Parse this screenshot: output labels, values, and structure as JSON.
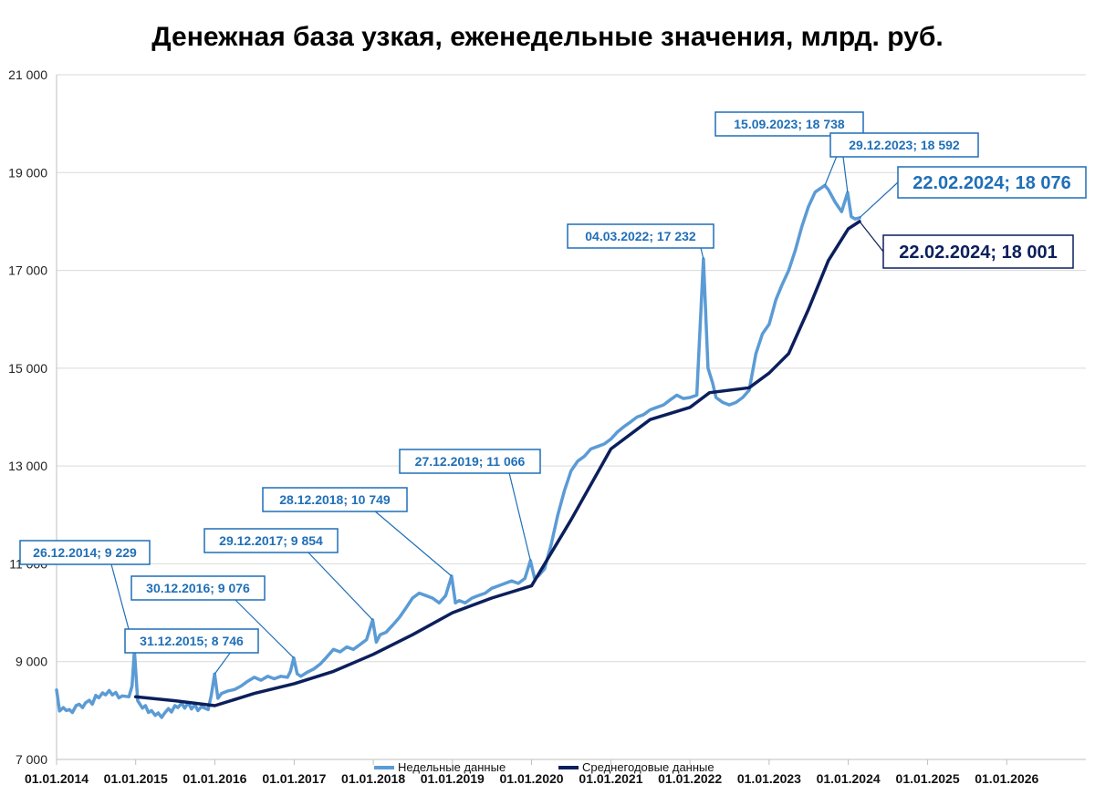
{
  "chart_data": {
    "type": "line",
    "title": "Денежная база узкая, еженедельные значения, млрд. руб.",
    "xlabel": "",
    "ylabel": "",
    "ylim": [
      7000,
      21000
    ],
    "y_ticks": [
      "7 000",
      "9 000",
      "11 000",
      "13 000",
      "15 000",
      "17 000",
      "19 000",
      "21 000"
    ],
    "y_tick_values": [
      7000,
      9000,
      11000,
      13000,
      15000,
      17000,
      19000,
      21000
    ],
    "x_range": [
      "01.01.2014",
      "01.01.2027"
    ],
    "x_ticks": [
      "01.01.2014",
      "01.01.2015",
      "01.01.2016",
      "01.01.2017",
      "01.01.2018",
      "01.01.2019",
      "01.01.2020",
      "01.01.2021",
      "01.01.2022",
      "01.01.2023",
      "01.01.2024",
      "01.01.2025",
      "01.01.2026"
    ],
    "grid": "horizontal",
    "legend": "bottom",
    "series": [
      {
        "name": "Недельные данные",
        "color": "#5B9BD5",
        "points": [
          [
            "01.01.2014",
            8420
          ],
          [
            "15.01.2014",
            7990
          ],
          [
            "01.02.2014",
            8060
          ],
          [
            "15.02.2014",
            8000
          ],
          [
            "01.03.2014",
            8020
          ],
          [
            "15.03.2014",
            7960
          ],
          [
            "01.04.2014",
            8100
          ],
          [
            "15.04.2014",
            8130
          ],
          [
            "01.05.2014",
            8060
          ],
          [
            "15.05.2014",
            8160
          ],
          [
            "01.06.2014",
            8210
          ],
          [
            "15.06.2014",
            8130
          ],
          [
            "01.07.2014",
            8310
          ],
          [
            "15.07.2014",
            8260
          ],
          [
            "01.08.2014",
            8360
          ],
          [
            "15.08.2014",
            8320
          ],
          [
            "01.09.2014",
            8410
          ],
          [
            "15.09.2014",
            8320
          ],
          [
            "01.10.2014",
            8370
          ],
          [
            "15.10.2014",
            8260
          ],
          [
            "01.11.2014",
            8300
          ],
          [
            "01.12.2014",
            8280
          ],
          [
            "15.12.2014",
            8500
          ],
          [
            "26.12.2014",
            9229
          ],
          [
            "10.01.2015",
            8200
          ],
          [
            "01.02.2015",
            8050
          ],
          [
            "15.02.2015",
            8100
          ],
          [
            "01.03.2015",
            7960
          ],
          [
            "15.03.2015",
            8000
          ],
          [
            "01.04.2015",
            7900
          ],
          [
            "15.04.2015",
            7950
          ],
          [
            "01.05.2015",
            7860
          ],
          [
            "15.05.2015",
            7950
          ],
          [
            "01.06.2015",
            8040
          ],
          [
            "15.06.2015",
            7970
          ],
          [
            "01.07.2015",
            8100
          ],
          [
            "15.07.2015",
            8060
          ],
          [
            "01.08.2015",
            8150
          ],
          [
            "15.08.2015",
            8050
          ],
          [
            "01.09.2015",
            8160
          ],
          [
            "15.09.2015",
            8030
          ],
          [
            "01.10.2015",
            8120
          ],
          [
            "15.10.2015",
            8000
          ],
          [
            "01.11.2015",
            8080
          ],
          [
            "01.12.2015",
            8020
          ],
          [
            "15.12.2015",
            8300
          ],
          [
            "31.12.2015",
            8746
          ],
          [
            "15.01.2016",
            8250
          ],
          [
            "01.02.2016",
            8350
          ],
          [
            "01.03.2016",
            8400
          ],
          [
            "01.04.2016",
            8430
          ],
          [
            "01.05.2016",
            8500
          ],
          [
            "01.06.2016",
            8600
          ],
          [
            "01.07.2016",
            8680
          ],
          [
            "01.08.2016",
            8620
          ],
          [
            "01.09.2016",
            8700
          ],
          [
            "01.10.2016",
            8650
          ],
          [
            "01.11.2016",
            8700
          ],
          [
            "01.12.2016",
            8680
          ],
          [
            "15.12.2016",
            8800
          ],
          [
            "30.12.2016",
            9076
          ],
          [
            "15.01.2017",
            8750
          ],
          [
            "01.02.2017",
            8700
          ],
          [
            "01.03.2017",
            8780
          ],
          [
            "01.04.2017",
            8850
          ],
          [
            "01.05.2017",
            8950
          ],
          [
            "01.06.2017",
            9100
          ],
          [
            "01.07.2017",
            9250
          ],
          [
            "01.08.2017",
            9200
          ],
          [
            "01.09.2017",
            9300
          ],
          [
            "01.10.2017",
            9250
          ],
          [
            "01.11.2017",
            9350
          ],
          [
            "01.12.2017",
            9450
          ],
          [
            "29.12.2017",
            9854
          ],
          [
            "15.01.2018",
            9400
          ],
          [
            "01.02.2018",
            9550
          ],
          [
            "01.03.2018",
            9600
          ],
          [
            "01.04.2018",
            9750
          ],
          [
            "01.05.2018",
            9900
          ],
          [
            "01.06.2018",
            10100
          ],
          [
            "01.07.2018",
            10300
          ],
          [
            "01.08.2018",
            10400
          ],
          [
            "01.09.2018",
            10350
          ],
          [
            "01.10.2018",
            10300
          ],
          [
            "01.11.2018",
            10200
          ],
          [
            "01.12.2018",
            10350
          ],
          [
            "28.12.2018",
            10749
          ],
          [
            "15.01.2019",
            10200
          ],
          [
            "01.02.2019",
            10250
          ],
          [
            "01.03.2019",
            10200
          ],
          [
            "01.04.2019",
            10300
          ],
          [
            "01.05.2019",
            10350
          ],
          [
            "01.06.2019",
            10400
          ],
          [
            "01.07.2019",
            10500
          ],
          [
            "01.08.2019",
            10550
          ],
          [
            "01.09.2019",
            10600
          ],
          [
            "01.10.2019",
            10650
          ],
          [
            "01.11.2019",
            10600
          ],
          [
            "01.12.2019",
            10700
          ],
          [
            "27.12.2019",
            11066
          ],
          [
            "15.01.2020",
            10700
          ],
          [
            "01.02.2020",
            10750
          ],
          [
            "01.03.2020",
            10900
          ],
          [
            "01.04.2020",
            11400
          ],
          [
            "01.05.2020",
            12000
          ],
          [
            "01.06.2020",
            12500
          ],
          [
            "01.07.2020",
            12900
          ],
          [
            "01.08.2020",
            13100
          ],
          [
            "01.09.2020",
            13200
          ],
          [
            "01.10.2020",
            13350
          ],
          [
            "01.11.2020",
            13400
          ],
          [
            "01.12.2020",
            13450
          ],
          [
            "01.01.2021",
            13550
          ],
          [
            "01.02.2021",
            13700
          ],
          [
            "01.03.2021",
            13800
          ],
          [
            "01.04.2021",
            13900
          ],
          [
            "01.05.2021",
            14000
          ],
          [
            "01.06.2021",
            14050
          ],
          [
            "01.07.2021",
            14150
          ],
          [
            "01.08.2021",
            14200
          ],
          [
            "01.09.2021",
            14250
          ],
          [
            "01.10.2021",
            14350
          ],
          [
            "01.11.2021",
            14450
          ],
          [
            "01.12.2021",
            14380
          ],
          [
            "01.01.2022",
            14400
          ],
          [
            "01.02.2022",
            14450
          ],
          [
            "04.03.2022",
            17232
          ],
          [
            "25.03.2022",
            15000
          ],
          [
            "15.04.2022",
            14700
          ],
          [
            "01.05.2022",
            14400
          ],
          [
            "01.06.2022",
            14300
          ],
          [
            "01.07.2022",
            14250
          ],
          [
            "01.08.2022",
            14300
          ],
          [
            "01.09.2022",
            14400
          ],
          [
            "01.10.2022",
            14550
          ],
          [
            "01.11.2022",
            15300
          ],
          [
            "01.12.2022",
            15700
          ],
          [
            "01.01.2023",
            15900
          ],
          [
            "01.02.2023",
            16400
          ],
          [
            "01.03.2023",
            16700
          ],
          [
            "01.04.2023",
            17000
          ],
          [
            "01.05.2023",
            17400
          ],
          [
            "01.06.2023",
            17900
          ],
          [
            "01.07.2023",
            18300
          ],
          [
            "01.08.2023",
            18600
          ],
          [
            "15.09.2023",
            18738
          ],
          [
            "01.10.2023",
            18650
          ],
          [
            "01.11.2023",
            18400
          ],
          [
            "01.12.2023",
            18200
          ],
          [
            "29.12.2023",
            18592
          ],
          [
            "15.01.2024",
            18100
          ],
          [
            "01.02.2024",
            18050
          ],
          [
            "22.02.2024",
            18076
          ]
        ]
      },
      {
        "name": "Среднегодовые данные",
        "color": "#0B1F5C",
        "points": [
          [
            "01.01.2015",
            8280
          ],
          [
            "01.07.2015",
            8200
          ],
          [
            "01.01.2016",
            8100
          ],
          [
            "01.07.2016",
            8350
          ],
          [
            "01.01.2017",
            8550
          ],
          [
            "01.07.2017",
            8800
          ],
          [
            "01.01.2018",
            9150
          ],
          [
            "01.07.2018",
            9550
          ],
          [
            "01.01.2019",
            10000
          ],
          [
            "01.07.2019",
            10300
          ],
          [
            "01.01.2020",
            10550
          ],
          [
            "01.07.2020",
            11900
          ],
          [
            "01.01.2021",
            13350
          ],
          [
            "01.07.2021",
            13950
          ],
          [
            "01.01.2022",
            14200
          ],
          [
            "01.04.2022",
            14500
          ],
          [
            "01.10.2022",
            14600
          ],
          [
            "01.01.2023",
            14900
          ],
          [
            "01.04.2023",
            15300
          ],
          [
            "01.07.2023",
            16200
          ],
          [
            "01.10.2023",
            17200
          ],
          [
            "01.01.2024",
            17850
          ],
          [
            "22.02.2024",
            18001
          ]
        ]
      }
    ],
    "annotations": [
      {
        "label": "26.12.2014; 9 229",
        "series": 0,
        "date": "26.12.2014",
        "value": 9229
      },
      {
        "label": "31.12.2015; 8 746",
        "series": 0,
        "date": "31.12.2015",
        "value": 8746
      },
      {
        "label": "30.12.2016; 9 076",
        "series": 0,
        "date": "30.12.2016",
        "value": 9076
      },
      {
        "label": "29.12.2017; 9 854",
        "series": 0,
        "date": "29.12.2017",
        "value": 9854
      },
      {
        "label": "28.12.2018; 10 749",
        "series": 0,
        "date": "28.12.2018",
        "value": 10749
      },
      {
        "label": "27.12.2019; 11 066",
        "series": 0,
        "date": "27.12.2019",
        "value": 11066
      },
      {
        "label": "04.03.2022; 17 232",
        "series": 0,
        "date": "04.03.2022",
        "value": 17232
      },
      {
        "label": "15.09.2023; 18 738",
        "series": 0,
        "date": "15.09.2023",
        "value": 18738
      },
      {
        "label": "29.12.2023; 18 592",
        "series": 0,
        "date": "29.12.2023",
        "value": 18592
      },
      {
        "label": "22.02.2024; 18 076",
        "series": 0,
        "date": "22.02.2024",
        "value": 18076
      },
      {
        "label": "22.02.2024; 18 001",
        "series": 1,
        "date": "22.02.2024",
        "value": 18001
      }
    ]
  }
}
